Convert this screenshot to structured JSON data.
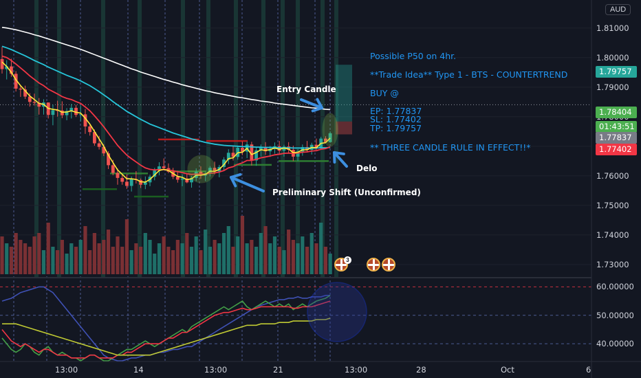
{
  "chart_data": [
    {
      "type": "candlestick",
      "currency_badge": "AUD",
      "price_axis_labels": [
        "1.81000",
        "1.80000",
        "1.79000",
        "1.78000",
        "1.77000",
        "1.76000",
        "1.75000",
        "1.74000",
        "1.73000"
      ],
      "time_axis_labels": [
        "13:00",
        "14",
        "13:00",
        "21",
        "13:00",
        "28",
        "Oct",
        "6"
      ],
      "price_tags": [
        {
          "value": "1.79757",
          "color": "#26a69a"
        },
        {
          "value": "1.78404",
          "color": "#4caf50"
        },
        {
          "value": "01:43:51",
          "color": "#4caf50"
        },
        {
          "value": "1.77837",
          "color": "#787b86"
        },
        {
          "value": "1.77402",
          "color": "#f23645"
        }
      ],
      "annotations": {
        "title": "Possible P50 on 4hr.",
        "trade_idea": "**Trade Idea** Type 1 - BTS - COUNTERTREND",
        "buy": "BUY @",
        "ep": "EP: 1.77837",
        "sl": "SL: 1.77402",
        "tp": "TP: 1.79757",
        "rule": "** THREE CANDLE RULE IN EFFECT!!*",
        "entry_candle": "Entry Candle",
        "delo": "Delo",
        "shift": "Preliminary Shift (Unconfirmed)"
      },
      "ylim": [
        1.7265,
        1.8183
      ],
      "event_flag_count": "3",
      "colors": {
        "bull": "#26a69a",
        "bear": "#ef5350",
        "ema_fast": "#ffeb3b",
        "ema_mid": "#f23645",
        "ema_slow": "#26c6da",
        "ema_long": "#ffffff"
      },
      "candles": [
        [
          1.7995,
          1.8036,
          1.7946,
          1.7961
        ],
        [
          1.7961,
          1.7991,
          1.7926,
          1.797
        ],
        [
          1.797,
          1.7996,
          1.7935,
          1.7945
        ],
        [
          1.7945,
          1.7954,
          1.7885,
          1.7895
        ],
        [
          1.7895,
          1.7906,
          1.7867,
          1.7892
        ],
        [
          1.7892,
          1.7905,
          1.786,
          1.7868
        ],
        [
          1.7868,
          1.788,
          1.7834,
          1.785
        ],
        [
          1.785,
          1.7878,
          1.7838,
          1.7847
        ],
        [
          1.7847,
          1.7863,
          1.7807,
          1.7834
        ],
        [
          1.7834,
          1.7859,
          1.7807,
          1.7848
        ],
        [
          1.7848,
          1.7848,
          1.7794,
          1.7806
        ],
        [
          1.7806,
          1.7841,
          1.7771,
          1.7822
        ],
        [
          1.7822,
          1.7854,
          1.78,
          1.7821
        ],
        [
          1.7821,
          1.7852,
          1.7795,
          1.7805
        ],
        [
          1.7805,
          1.7829,
          1.7788,
          1.7819
        ],
        [
          1.7819,
          1.7843,
          1.7794,
          1.783
        ],
        [
          1.783,
          1.784,
          1.7799,
          1.7806
        ],
        [
          1.7806,
          1.7838,
          1.7784,
          1.7808
        ],
        [
          1.7808,
          1.7826,
          1.7742,
          1.7767
        ],
        [
          1.7767,
          1.7774,
          1.7736,
          1.7748
        ],
        [
          1.7748,
          1.7757,
          1.7702,
          1.771
        ],
        [
          1.771,
          1.7735,
          1.7689,
          1.7698
        ],
        [
          1.7698,
          1.7707,
          1.7667,
          1.7676
        ],
        [
          1.7676,
          1.7683,
          1.7623,
          1.7636
        ],
        [
          1.7636,
          1.7654,
          1.7602,
          1.761
        ],
        [
          1.761,
          1.7625,
          1.757,
          1.7593
        ],
        [
          1.7593,
          1.7607,
          1.757,
          1.758
        ],
        [
          1.758,
          1.7605,
          1.7556,
          1.7566
        ],
        [
          1.7566,
          1.7598,
          1.7547,
          1.7589
        ],
        [
          1.7589,
          1.7616,
          1.7574,
          1.7586
        ],
        [
          1.7586,
          1.7591,
          1.7559,
          1.757
        ],
        [
          1.757,
          1.7598,
          1.7555,
          1.7578
        ],
        [
          1.7578,
          1.7604,
          1.7565,
          1.7597
        ],
        [
          1.7597,
          1.7627,
          1.7585,
          1.7618
        ],
        [
          1.7618,
          1.7646,
          1.7602,
          1.7632
        ],
        [
          1.7632,
          1.7659,
          1.762,
          1.7626
        ],
        [
          1.7626,
          1.7642,
          1.7609,
          1.7614
        ],
        [
          1.7614,
          1.7627,
          1.7589,
          1.7597
        ],
        [
          1.7597,
          1.7617,
          1.7577,
          1.7587
        ],
        [
          1.7587,
          1.7605,
          1.7565,
          1.7591
        ],
        [
          1.7591,
          1.761,
          1.7575,
          1.7578
        ],
        [
          1.7578,
          1.76,
          1.756,
          1.7593
        ],
        [
          1.7593,
          1.7625,
          1.7582,
          1.7614
        ],
        [
          1.7614,
          1.7632,
          1.759,
          1.7601
        ],
        [
          1.7601,
          1.7612,
          1.7582,
          1.7609
        ],
        [
          1.7609,
          1.7633,
          1.7598,
          1.7627
        ],
        [
          1.7627,
          1.7648,
          1.7605,
          1.7615
        ],
        [
          1.7615,
          1.7637,
          1.7595,
          1.763
        ],
        [
          1.763,
          1.7663,
          1.7618,
          1.7655
        ],
        [
          1.7655,
          1.769,
          1.764,
          1.7678
        ],
        [
          1.7678,
          1.7702,
          1.7652,
          1.7664
        ],
        [
          1.7664,
          1.7702,
          1.7655,
          1.7695
        ],
        [
          1.7695,
          1.7716,
          1.767,
          1.7682
        ],
        [
          1.7682,
          1.7716,
          1.766,
          1.7706
        ],
        [
          1.7706,
          1.7715,
          1.7635,
          1.7652
        ],
        [
          1.7652,
          1.7695,
          1.7634,
          1.7686
        ],
        [
          1.7686,
          1.7706,
          1.7665,
          1.7697
        ],
        [
          1.7697,
          1.7714,
          1.7671,
          1.7683
        ],
        [
          1.7683,
          1.7701,
          1.7664,
          1.7691
        ],
        [
          1.7691,
          1.7713,
          1.7675,
          1.77
        ],
        [
          1.77,
          1.7718,
          1.7671,
          1.7685
        ],
        [
          1.7685,
          1.7705,
          1.7665,
          1.7699
        ],
        [
          1.7699,
          1.7714,
          1.7675,
          1.7688
        ],
        [
          1.7688,
          1.7702,
          1.765,
          1.7665
        ],
        [
          1.7665,
          1.769,
          1.765,
          1.7682
        ],
        [
          1.7682,
          1.7706,
          1.7668,
          1.7697
        ],
        [
          1.7697,
          1.7718,
          1.7679,
          1.7688
        ],
        [
          1.7688,
          1.7712,
          1.7672,
          1.7705
        ],
        [
          1.7705,
          1.7726,
          1.7688,
          1.7694
        ],
        [
          1.7694,
          1.7732,
          1.769,
          1.7726
        ],
        [
          1.7726,
          1.7734,
          1.771,
          1.7714
        ],
        [
          1.7714,
          1.775,
          1.7712,
          1.7744
        ]
      ],
      "volumes": [
        55,
        45,
        40,
        60,
        50,
        45,
        40,
        55,
        60,
        35,
        75,
        40,
        35,
        50,
        30,
        45,
        40,
        50,
        70,
        35,
        60,
        45,
        50,
        65,
        40,
        55,
        40,
        80,
        35,
        45,
        40,
        60,
        50,
        30,
        45,
        55,
        40,
        35,
        50,
        45,
        60,
        40,
        55,
        35,
        65,
        40,
        50,
        45,
        60,
        70,
        40,
        55,
        85,
        45,
        50,
        40,
        60,
        70,
        45,
        55,
        40,
        35,
        65,
        50,
        45,
        55,
        40,
        60,
        45,
        75,
        40,
        30
      ],
      "ema_fast": [
        1.7985,
        1.797,
        1.795,
        1.7925,
        1.7905,
        1.7888,
        1.787,
        1.7858,
        1.7845,
        1.7842,
        1.7828,
        1.7825,
        1.7823,
        1.7815,
        1.7816,
        1.782,
        1.7815,
        1.7812,
        1.7795,
        1.7775,
        1.775,
        1.7725,
        1.77,
        1.767,
        1.7645,
        1.762,
        1.7605,
        1.759,
        1.759,
        1.7588,
        1.758,
        1.7579,
        1.7588,
        1.7603,
        1.7618,
        1.7622,
        1.7618,
        1.7608,
        1.7598,
        1.7595,
        1.7587,
        1.759,
        1.7602,
        1.7602,
        1.7605,
        1.7616,
        1.7615,
        1.7622,
        1.7638,
        1.7658,
        1.7661,
        1.7678,
        1.768,
        1.7693,
        1.7672,
        1.7679,
        1.7688,
        1.7686,
        1.7689,
        1.7694,
        1.769,
        1.7694,
        1.7691,
        1.7678,
        1.768,
        1.7688,
        1.7688,
        1.7696,
        1.7695,
        1.771,
        1.7712,
        1.7728
      ],
      "ema_mid": [
        1.8005,
        1.8,
        1.799,
        1.7978,
        1.7965,
        1.7952,
        1.7938,
        1.7926,
        1.7914,
        1.7905,
        1.7893,
        1.7885,
        1.7877,
        1.7868,
        1.7862,
        1.7858,
        1.7851,
        1.7845,
        1.7833,
        1.782,
        1.7803,
        1.7785,
        1.7766,
        1.7745,
        1.7724,
        1.7703,
        1.7686,
        1.767,
        1.7658,
        1.7647,
        1.7636,
        1.7627,
        1.7622,
        1.762,
        1.7621,
        1.7621,
        1.762,
        1.7617,
        1.7614,
        1.7611,
        1.7607,
        1.7605,
        1.7606,
        1.7606,
        1.7606,
        1.7609,
        1.761,
        1.7613,
        1.7618,
        1.7627,
        1.7631,
        1.7639,
        1.7644,
        1.7652,
        1.7652,
        1.7656,
        1.7661,
        1.7664,
        1.7667,
        1.7671,
        1.7673,
        1.7676,
        1.7677,
        1.7676,
        1.7677,
        1.768,
        1.7681,
        1.7684,
        1.7685,
        1.769,
        1.7692,
        1.7698
      ],
      "ema_slow": [
        1.8038,
        1.8033,
        1.8027,
        1.802,
        1.8013,
        1.8006,
        1.7998,
        1.799,
        1.7983,
        1.7976,
        1.7968,
        1.7961,
        1.7954,
        1.7947,
        1.794,
        1.7934,
        1.7928,
        1.7921,
        1.7913,
        1.7905,
        1.7895,
        1.7885,
        1.7874,
        1.7863,
        1.7851,
        1.784,
        1.7829,
        1.7818,
        1.7809,
        1.78,
        1.7791,
        1.7783,
        1.7775,
        1.7769,
        1.7763,
        1.7757,
        1.7751,
        1.7745,
        1.774,
        1.7735,
        1.773,
        1.7725,
        1.7721,
        1.7717,
        1.7713,
        1.771,
        1.7707,
        1.7705,
        1.7703,
        1.7702,
        1.7701,
        1.77,
        1.7699,
        1.7699,
        1.7698,
        1.7697,
        1.7697,
        1.7696,
        1.7696,
        1.7696,
        1.7695,
        1.7695,
        1.7695,
        1.7694,
        1.7694,
        1.7694,
        1.7694,
        1.7694,
        1.7694,
        1.7695,
        1.7695,
        1.7696
      ],
      "ema_long": [
        1.8102,
        1.81,
        1.8097,
        1.8094,
        1.809,
        1.8086,
        1.8082,
        1.8077,
        1.8073,
        1.8068,
        1.8063,
        1.8058,
        1.8053,
        1.8048,
        1.8043,
        1.8038,
        1.8033,
        1.8028,
        1.8022,
        1.8016,
        1.801,
        1.8004,
        1.7998,
        1.7992,
        1.7986,
        1.798,
        1.7974,
        1.7968,
        1.7962,
        1.7957,
        1.7951,
        1.7946,
        1.7941,
        1.7936,
        1.7931,
        1.7926,
        1.7922,
        1.7917,
        1.7913,
        1.7908,
        1.7904,
        1.79,
        1.7896,
        1.7892,
        1.7888,
        1.7885,
        1.7881,
        1.7878,
        1.7875,
        1.7872,
        1.7869,
        1.7866,
        1.7864,
        1.7861,
        1.7858,
        1.7856,
        1.7853,
        1.7851,
        1.7849,
        1.7846,
        1.7844,
        1.7842,
        1.784,
        1.7838,
        1.7836,
        1.7834,
        1.7832,
        1.783,
        1.7829,
        1.7827,
        1.7825,
        1.7824
      ]
    },
    {
      "type": "line",
      "indicator_axis_labels": [
        "60.00000",
        "50.00000",
        "40.00000"
      ],
      "ylim": [
        34,
        63
      ],
      "series": [
        {
          "color": "#3f51b5",
          "values": [
            55,
            55.5,
            56,
            57,
            58,
            58.5,
            59,
            59.5,
            60,
            60,
            59,
            58,
            56,
            54,
            52,
            50,
            48,
            46,
            44,
            42,
            40,
            38,
            36,
            35,
            34.5,
            34,
            34,
            34.5,
            35,
            35,
            35.5,
            36,
            36,
            36.5,
            37,
            37,
            37.5,
            38,
            38,
            38.5,
            39,
            39,
            40,
            41,
            42,
            43,
            44,
            45,
            46,
            47,
            48,
            49,
            50,
            51,
            52,
            53,
            53.5,
            54,
            54.5,
            55,
            55.5,
            55.5,
            56,
            56,
            56.5,
            56,
            56,
            56.5,
            56.5,
            56.5,
            57,
            57
          ]
        },
        {
          "color": "#43a047",
          "values": [
            42,
            40,
            38,
            37,
            38,
            40,
            39,
            37,
            36,
            38,
            39,
            37,
            36,
            37,
            36,
            35,
            35,
            34,
            35,
            36,
            36,
            35,
            34,
            34,
            35,
            36,
            37,
            38,
            38,
            39,
            40,
            41,
            40,
            39,
            40,
            41,
            42,
            43,
            44,
            45,
            44,
            46,
            47,
            48,
            49,
            50,
            51,
            52,
            53,
            52,
            53,
            54,
            55,
            53,
            52,
            53,
            54,
            55,
            54,
            53,
            54,
            53,
            54,
            52,
            53,
            54,
            53,
            54,
            55,
            55.5,
            56,
            57
          ]
        },
        {
          "color": "#f23645",
          "values": [
            45,
            43,
            41,
            40,
            39,
            40,
            39,
            38,
            37,
            38,
            38,
            37,
            36,
            36,
            36,
            35,
            35,
            35,
            35,
            36,
            36,
            35,
            35,
            35,
            35,
            36,
            36,
            37,
            37,
            38,
            39,
            40,
            40,
            40,
            40,
            41,
            42,
            42,
            43,
            44,
            44,
            45,
            46,
            47,
            48,
            49,
            50,
            50.5,
            51,
            51,
            51.5,
            52,
            52.5,
            52,
            52,
            52.5,
            53,
            53,
            53,
            53,
            53,
            53,
            53,
            52.5,
            52.5,
            53,
            53,
            53,
            53.5,
            54,
            54.5,
            55
          ]
        },
        {
          "color": "#c0ca33",
          "values": [
            47,
            47,
            47,
            47,
            46.5,
            46,
            45.5,
            45,
            44.5,
            44,
            43.5,
            43,
            42.5,
            42,
            41.5,
            41,
            40.5,
            40,
            39.5,
            39,
            38.5,
            38,
            37.5,
            37,
            36.5,
            36,
            36,
            36,
            36,
            36,
            36,
            36,
            36,
            36.5,
            37,
            37.5,
            38,
            38.5,
            39,
            39.5,
            40,
            40.5,
            41,
            41.5,
            42,
            42.5,
            43,
            43.5,
            44,
            44.5,
            45,
            45.5,
            46,
            46.5,
            46.5,
            46.5,
            47,
            47,
            47,
            47,
            47.5,
            47.5,
            47.5,
            48,
            48,
            48,
            48,
            48,
            48.5,
            48.5,
            48.5,
            49
          ]
        }
      ]
    }
  ]
}
